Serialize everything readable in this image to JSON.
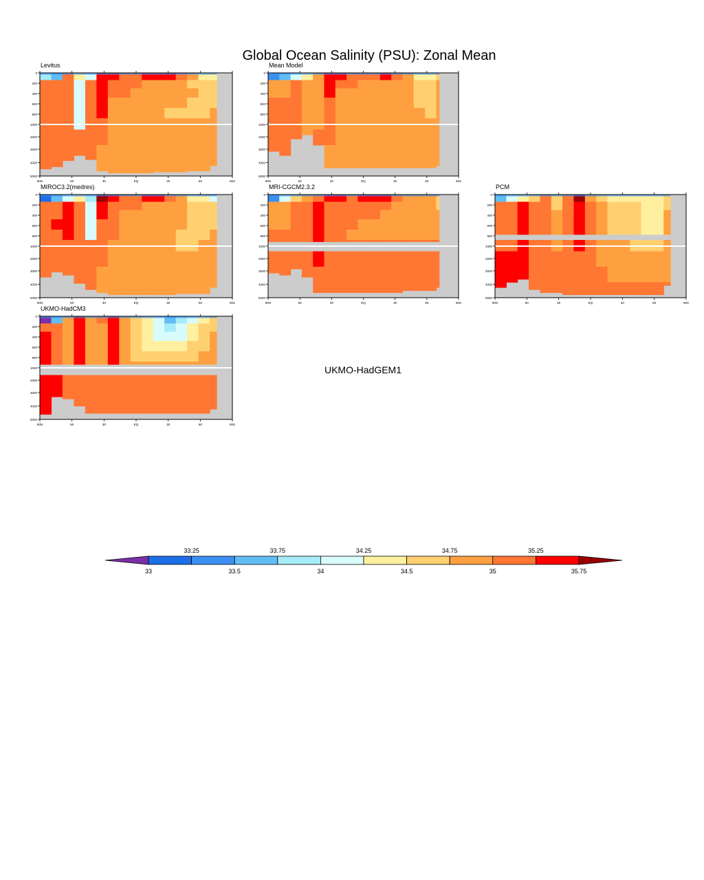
{
  "title": "Global Ocean Salinity (PSU): Zonal Mean",
  "colors": {
    "land": "#cccccc",
    "levels": [
      "#7b2fa8",
      "#1c6fe6",
      "#3b8ff0",
      "#62bdf5",
      "#a6ebf8",
      "#d8fbfb",
      "#fff0a0",
      "#ffd070",
      "#ffa040",
      "#ff7733",
      "#ff0000",
      "#990000"
    ]
  },
  "chart_data": [
    {
      "type": "heatmap",
      "name": "Levitus",
      "x_ticks": [
        "90N",
        "60",
        "30",
        "EQ",
        "30",
        "60",
        "90S"
      ],
      "y_ticks": [
        "0",
        "200",
        "400",
        "600",
        "800",
        "1000",
        "2000",
        "3000",
        "4000",
        "5000"
      ],
      "field": [
        [
          4,
          3,
          9,
          6,
          5,
          10,
          10,
          9,
          9,
          10,
          10,
          10,
          9,
          8,
          6,
          6,
          5
        ],
        [
          9,
          9,
          9,
          5,
          9,
          10,
          9,
          9,
          9,
          8,
          8,
          8,
          8,
          7,
          7,
          7,
          7
        ],
        [
          9,
          9,
          9,
          5,
          9,
          10,
          9,
          9,
          8,
          8,
          8,
          8,
          8,
          8,
          7,
          7,
          7
        ],
        [
          9,
          9,
          9,
          5,
          9,
          10,
          8,
          8,
          8,
          8,
          8,
          8,
          8,
          7,
          7,
          7,
          8
        ],
        [
          9,
          9,
          9,
          5,
          9,
          10,
          8,
          8,
          8,
          8,
          8,
          7,
          7,
          7,
          7,
          8,
          8
        ],
        [
          9,
          9,
          9,
          5,
          9,
          9,
          8,
          8,
          8,
          8,
          8,
          8,
          8,
          8,
          8,
          8,
          8
        ],
        [
          9,
          9,
          9,
          9,
          9,
          9,
          8,
          8,
          8,
          8,
          8,
          8,
          8,
          8,
          8,
          8,
          8
        ],
        [
          9,
          9,
          9,
          9,
          9,
          8,
          8,
          8,
          8,
          8,
          8,
          8,
          8,
          8,
          8,
          8,
          8
        ],
        [
          9,
          9,
          9,
          9,
          9,
          8,
          8,
          8,
          8,
          8,
          8,
          8,
          8,
          8,
          8,
          8,
          8
        ]
      ]
    },
    {
      "type": "heatmap",
      "name": "Mean Model",
      "x_ticks": [
        "90N",
        "60",
        "30",
        "EQ",
        "30",
        "60",
        "90S"
      ],
      "y_ticks": [
        "0",
        "200",
        "400",
        "600",
        "800",
        "1000",
        "2000",
        "3000",
        "4000",
        "5000"
      ],
      "field": [
        [
          2,
          3,
          5,
          6,
          8,
          10,
          10,
          9,
          9,
          9,
          10,
          9,
          8,
          6,
          6,
          7,
          7
        ],
        [
          8,
          8,
          9,
          8,
          8,
          10,
          9,
          9,
          8,
          8,
          8,
          8,
          8,
          7,
          7,
          8,
          8
        ],
        [
          8,
          8,
          9,
          8,
          8,
          10,
          8,
          8,
          8,
          8,
          8,
          8,
          8,
          7,
          7,
          8,
          8
        ],
        [
          9,
          9,
          9,
          8,
          8,
          9,
          8,
          8,
          8,
          8,
          8,
          8,
          8,
          7,
          7,
          8,
          8
        ],
        [
          9,
          9,
          9,
          8,
          8,
          9,
          8,
          8,
          8,
          8,
          8,
          8,
          8,
          8,
          7,
          8,
          8
        ],
        [
          9,
          9,
          9,
          8,
          8,
          9,
          8,
          8,
          8,
          8,
          8,
          8,
          8,
          8,
          8,
          8,
          8
        ],
        [
          9,
          9,
          9,
          8,
          9,
          9,
          8,
          8,
          8,
          8,
          8,
          8,
          8,
          8,
          8,
          8,
          8
        ],
        [
          9,
          9,
          9,
          8,
          9,
          8,
          8,
          8,
          8,
          8,
          8,
          8,
          8,
          8,
          8,
          8,
          8
        ],
        [
          9,
          9,
          9,
          8,
          9,
          8,
          8,
          8,
          8,
          8,
          8,
          8,
          8,
          8,
          8,
          8,
          8
        ]
      ]
    },
    {
      "type": "heatmap",
      "name": "MIROC3.2(medres)",
      "x_ticks": [
        "90N",
        "60",
        "30",
        "EQ",
        "30",
        "60",
        "90S"
      ],
      "y_ticks": [
        "0",
        "200",
        "400",
        "600",
        "800",
        "1000",
        "2000",
        "3000",
        "4000",
        "5000"
      ],
      "field": [
        [
          1,
          3,
          5,
          6,
          4,
          11,
          10,
          9,
          9,
          10,
          10,
          9,
          8,
          6,
          6,
          5,
          5
        ],
        [
          9,
          9,
          10,
          9,
          5,
          10,
          9,
          9,
          9,
          8,
          8,
          8,
          8,
          7,
          7,
          7,
          7
        ],
        [
          9,
          9,
          10,
          9,
          5,
          10,
          9,
          8,
          8,
          8,
          8,
          8,
          8,
          7,
          7,
          7,
          7
        ],
        [
          9,
          10,
          10,
          9,
          5,
          9,
          9,
          8,
          8,
          8,
          8,
          8,
          8,
          7,
          7,
          7,
          8
        ],
        [
          9,
          9,
          10,
          9,
          5,
          9,
          9,
          8,
          8,
          8,
          8,
          8,
          7,
          7,
          7,
          8,
          8
        ],
        [
          9,
          9,
          9,
          9,
          9,
          9,
          8,
          8,
          8,
          8,
          8,
          8,
          7,
          7,
          8,
          8,
          8
        ],
        [
          9,
          9,
          9,
          9,
          9,
          9,
          8,
          8,
          8,
          8,
          8,
          8,
          8,
          8,
          8,
          8,
          8
        ],
        [
          9,
          9,
          9,
          9,
          9,
          8,
          8,
          8,
          8,
          8,
          8,
          8,
          8,
          8,
          8,
          8,
          8
        ],
        [
          9,
          9,
          9,
          9,
          9,
          8,
          8,
          8,
          8,
          8,
          8,
          8,
          8,
          8,
          8,
          8,
          8
        ]
      ]
    },
    {
      "type": "heatmap",
      "name": "MRI-CGCM2.3.2",
      "x_ticks": [
        "90N",
        "60",
        "30",
        "EQ",
        "30",
        "60",
        "90S"
      ],
      "y_ticks": [
        "0",
        "200",
        "400",
        "600",
        "800",
        "1000",
        "2000",
        "3000",
        "4000",
        "5000"
      ],
      "field": [
        [
          2,
          5,
          7,
          8,
          9,
          10,
          10,
          9,
          10,
          10,
          10,
          9,
          8,
          8,
          8,
          7,
          7
        ],
        [
          8,
          8,
          9,
          9,
          10,
          9,
          9,
          9,
          9,
          9,
          9,
          8,
          8,
          8,
          8,
          7,
          7
        ],
        [
          8,
          8,
          9,
          9,
          10,
          9,
          9,
          9,
          9,
          9,
          8,
          8,
          8,
          8,
          8,
          8,
          8
        ],
        [
          8,
          8,
          9,
          9,
          10,
          9,
          9,
          9,
          8,
          8,
          8,
          8,
          8,
          8,
          8,
          8,
          8
        ],
        [
          9,
          9,
          9,
          9,
          10,
          9,
          9,
          8,
          8,
          8,
          8,
          8,
          8,
          8,
          8,
          8,
          8
        ],
        [
          9,
          9,
          9,
          9,
          10,
          9,
          9,
          9,
          9,
          9,
          9,
          9,
          9,
          9,
          9,
          9,
          9
        ],
        [
          9,
          9,
          9,
          9,
          10,
          9,
          9,
          9,
          9,
          9,
          9,
          9,
          9,
          9,
          9,
          9,
          9
        ],
        [
          9,
          9,
          9,
          9,
          9,
          9,
          9,
          9,
          9,
          9,
          9,
          9,
          9,
          9,
          9,
          9,
          9
        ],
        [
          9,
          9,
          9,
          9,
          9,
          9,
          9,
          9,
          9,
          9,
          9,
          9,
          9,
          9,
          9,
          9,
          9
        ]
      ]
    },
    {
      "type": "heatmap",
      "name": "PCM",
      "x_ticks": [
        "90N",
        "60",
        "30",
        "EQ",
        "30",
        "60",
        "90S"
      ],
      "y_ticks": [
        "0",
        "200",
        "400",
        "600",
        "800",
        "1000",
        "2000",
        "3000",
        "4000",
        "5000"
      ],
      "field": [
        [
          3,
          5,
          6,
          7,
          9,
          7,
          9,
          11,
          8,
          7,
          6,
          6,
          6,
          6,
          6,
          7,
          7
        ],
        [
          9,
          9,
          10,
          9,
          9,
          7,
          9,
          10,
          9,
          8,
          7,
          7,
          7,
          6,
          6,
          7,
          7
        ],
        [
          9,
          9,
          10,
          9,
          9,
          8,
          9,
          10,
          9,
          8,
          7,
          7,
          7,
          6,
          6,
          8,
          8
        ],
        [
          9,
          9,
          10,
          9,
          9,
          8,
          9,
          10,
          9,
          8,
          7,
          7,
          7,
          6,
          6,
          8,
          8
        ],
        [
          9,
          9,
          10,
          9,
          9,
          8,
          9,
          10,
          9,
          8,
          7,
          7,
          7,
          6,
          6,
          8,
          8
        ],
        [
          9,
          9,
          10,
          9,
          9,
          8,
          9,
          10,
          9,
          8,
          8,
          8,
          7,
          7,
          7,
          8,
          8
        ],
        [
          10,
          10,
          10,
          9,
          9,
          9,
          9,
          9,
          9,
          8,
          8,
          8,
          8,
          8,
          8,
          8,
          8
        ],
        [
          10,
          10,
          10,
          9,
          9,
          9,
          9,
          9,
          9,
          9,
          8,
          8,
          8,
          8,
          8,
          8,
          8
        ],
        [
          10,
          10,
          10,
          9,
          9,
          9,
          9,
          9,
          9,
          9,
          9,
          9,
          9,
          9,
          9,
          9,
          9
        ]
      ]
    },
    {
      "type": "heatmap",
      "name": "UKMO-HadCM3",
      "x_ticks": [
        "90N",
        "60",
        "30",
        "EQ",
        "30",
        "60",
        "90S"
      ],
      "y_ticks": [
        "0",
        "200",
        "400",
        "600",
        "800",
        "1000",
        "2000",
        "3000",
        "4000",
        "5000"
      ],
      "field": [
        [
          0,
          3,
          8,
          10,
          8,
          9,
          10,
          8,
          7,
          6,
          5,
          3,
          4,
          5,
          6,
          7,
          7
        ],
        [
          9,
          9,
          8,
          10,
          8,
          8,
          10,
          8,
          7,
          6,
          5,
          4,
          5,
          6,
          7,
          7,
          7
        ],
        [
          10,
          9,
          8,
          10,
          8,
          8,
          10,
          8,
          7,
          6,
          5,
          5,
          5,
          6,
          7,
          8,
          8
        ],
        [
          10,
          9,
          8,
          10,
          8,
          8,
          10,
          8,
          7,
          6,
          6,
          6,
          6,
          7,
          7,
          8,
          8
        ],
        [
          10,
          9,
          8,
          10,
          8,
          8,
          10,
          8,
          7,
          7,
          7,
          7,
          7,
          7,
          8,
          8,
          8
        ],
        [
          10,
          9,
          8,
          10,
          8,
          8,
          10,
          8,
          8,
          8,
          8,
          8,
          8,
          8,
          8,
          8,
          8
        ],
        [
          10,
          10,
          9,
          9,
          9,
          9,
          9,
          9,
          9,
          9,
          9,
          9,
          9,
          9,
          9,
          9,
          9
        ],
        [
          10,
          10,
          9,
          9,
          9,
          9,
          9,
          9,
          9,
          9,
          9,
          9,
          9,
          9,
          9,
          9,
          9
        ],
        [
          10,
          10,
          9,
          9,
          9,
          9,
          9,
          9,
          9,
          9,
          9,
          9,
          9,
          9,
          9,
          9,
          9
        ]
      ]
    }
  ],
  "missing_panel_label": "UKMO-HadGEM1",
  "colorbar": {
    "upper_labels": [
      "33.25",
      "33.75",
      "34.25",
      "34.75",
      "35.25"
    ],
    "lower_labels": [
      "33",
      "33.5",
      "34",
      "34.5",
      "35",
      "35.75"
    ]
  }
}
